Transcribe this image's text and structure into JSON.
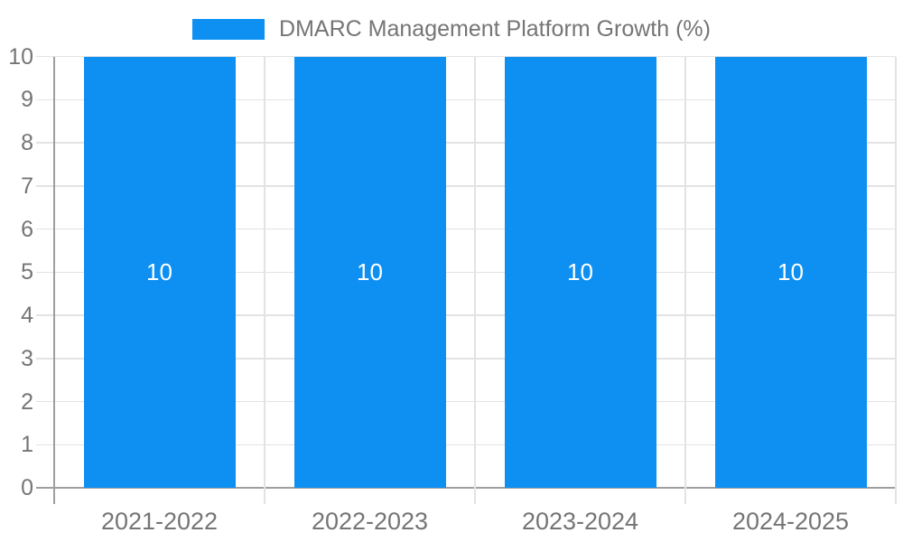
{
  "colors": {
    "bar": "#0e90f2",
    "axis": "#9e9e9e",
    "gridline": "#e3e3e3",
    "label_text": "#757575",
    "bar_value_label": "#ffffff",
    "background": "#ffffff"
  },
  "chart_data": {
    "type": "bar",
    "title": "",
    "legend": {
      "position": "top",
      "entries": [
        {
          "label": "DMARC Management Platform Growth (%)",
          "color": "#0e90f2"
        }
      ]
    },
    "categories": [
      "2021-2022",
      "2022-2023",
      "2023-2024",
      "2024-2025"
    ],
    "series": [
      {
        "name": "DMARC Management Platform Growth (%)",
        "values": [
          10,
          10,
          10,
          10
        ],
        "color": "#0e90f2"
      }
    ],
    "bar_value_labels": [
      "10",
      "10",
      "10",
      "10"
    ],
    "xlabel": "",
    "ylabel": "",
    "ylim": [
      0,
      10
    ],
    "yticks": [
      0,
      1,
      2,
      3,
      4,
      5,
      6,
      7,
      8,
      9,
      10
    ],
    "grid": true,
    "bar_label_position": "center"
  }
}
